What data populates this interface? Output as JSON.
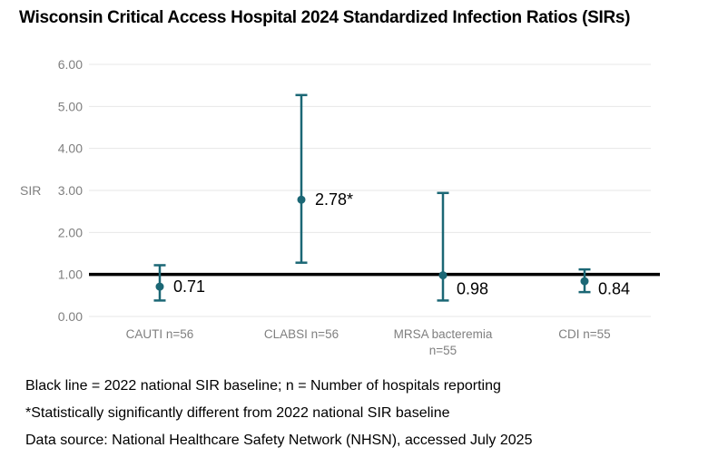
{
  "title": "Wisconsin Critical Access Hospital 2024 Standardized Infection Ratios (SIRs)",
  "footnotes": [
    "Black line = 2022 national SIR baseline; n = Number of hospitals reporting",
    "*Statistically significantly different from 2022 national SIR baseline",
    "Data source: National Healthcare Safety Network (NHSN), accessed July 2025"
  ],
  "colors": {
    "marker": "#1b6775",
    "grid": "#e7e7e7",
    "axis_text": "#7f7f7f",
    "baseline": "#000000",
    "data_label": "#000000",
    "background": "#ffffff"
  },
  "chart_data": {
    "type": "scatter",
    "subtype": "point-estimates-with-error-bars",
    "title": "Wisconsin Critical Access Hospital 2024 Standardized Infection Ratios (SIRs)",
    "xlabel": "",
    "ylabel": "SIR",
    "ylim": [
      0,
      6
    ],
    "yticks": [
      "0.00",
      "1.00",
      "2.00",
      "3.00",
      "4.00",
      "5.00",
      "6.00"
    ],
    "grid": true,
    "legend": false,
    "baseline": {
      "value": 1.0
    },
    "categories": [
      "CAUTI n=56",
      "CLABSI n=56",
      "MRSA bacteremia\nn=55",
      "CDI n=55"
    ],
    "points": [
      {
        "category": "CAUTI",
        "n": 56,
        "sir": 0.71,
        "label": "0.71",
        "ci_low": 0.38,
        "ci_high": 1.22,
        "significant": false
      },
      {
        "category": "CLABSI",
        "n": 56,
        "sir": 2.78,
        "label": "2.78*",
        "ci_low": 1.28,
        "ci_high": 5.27,
        "significant": true
      },
      {
        "category": "MRSA bacteremia",
        "n": 55,
        "sir": 0.98,
        "label": "0.98",
        "ci_low": 0.38,
        "ci_high": 2.94,
        "significant": false
      },
      {
        "category": "CDI",
        "n": 55,
        "sir": 0.84,
        "label": "0.84",
        "ci_low": 0.58,
        "ci_high": 1.12,
        "significant": false
      }
    ]
  }
}
